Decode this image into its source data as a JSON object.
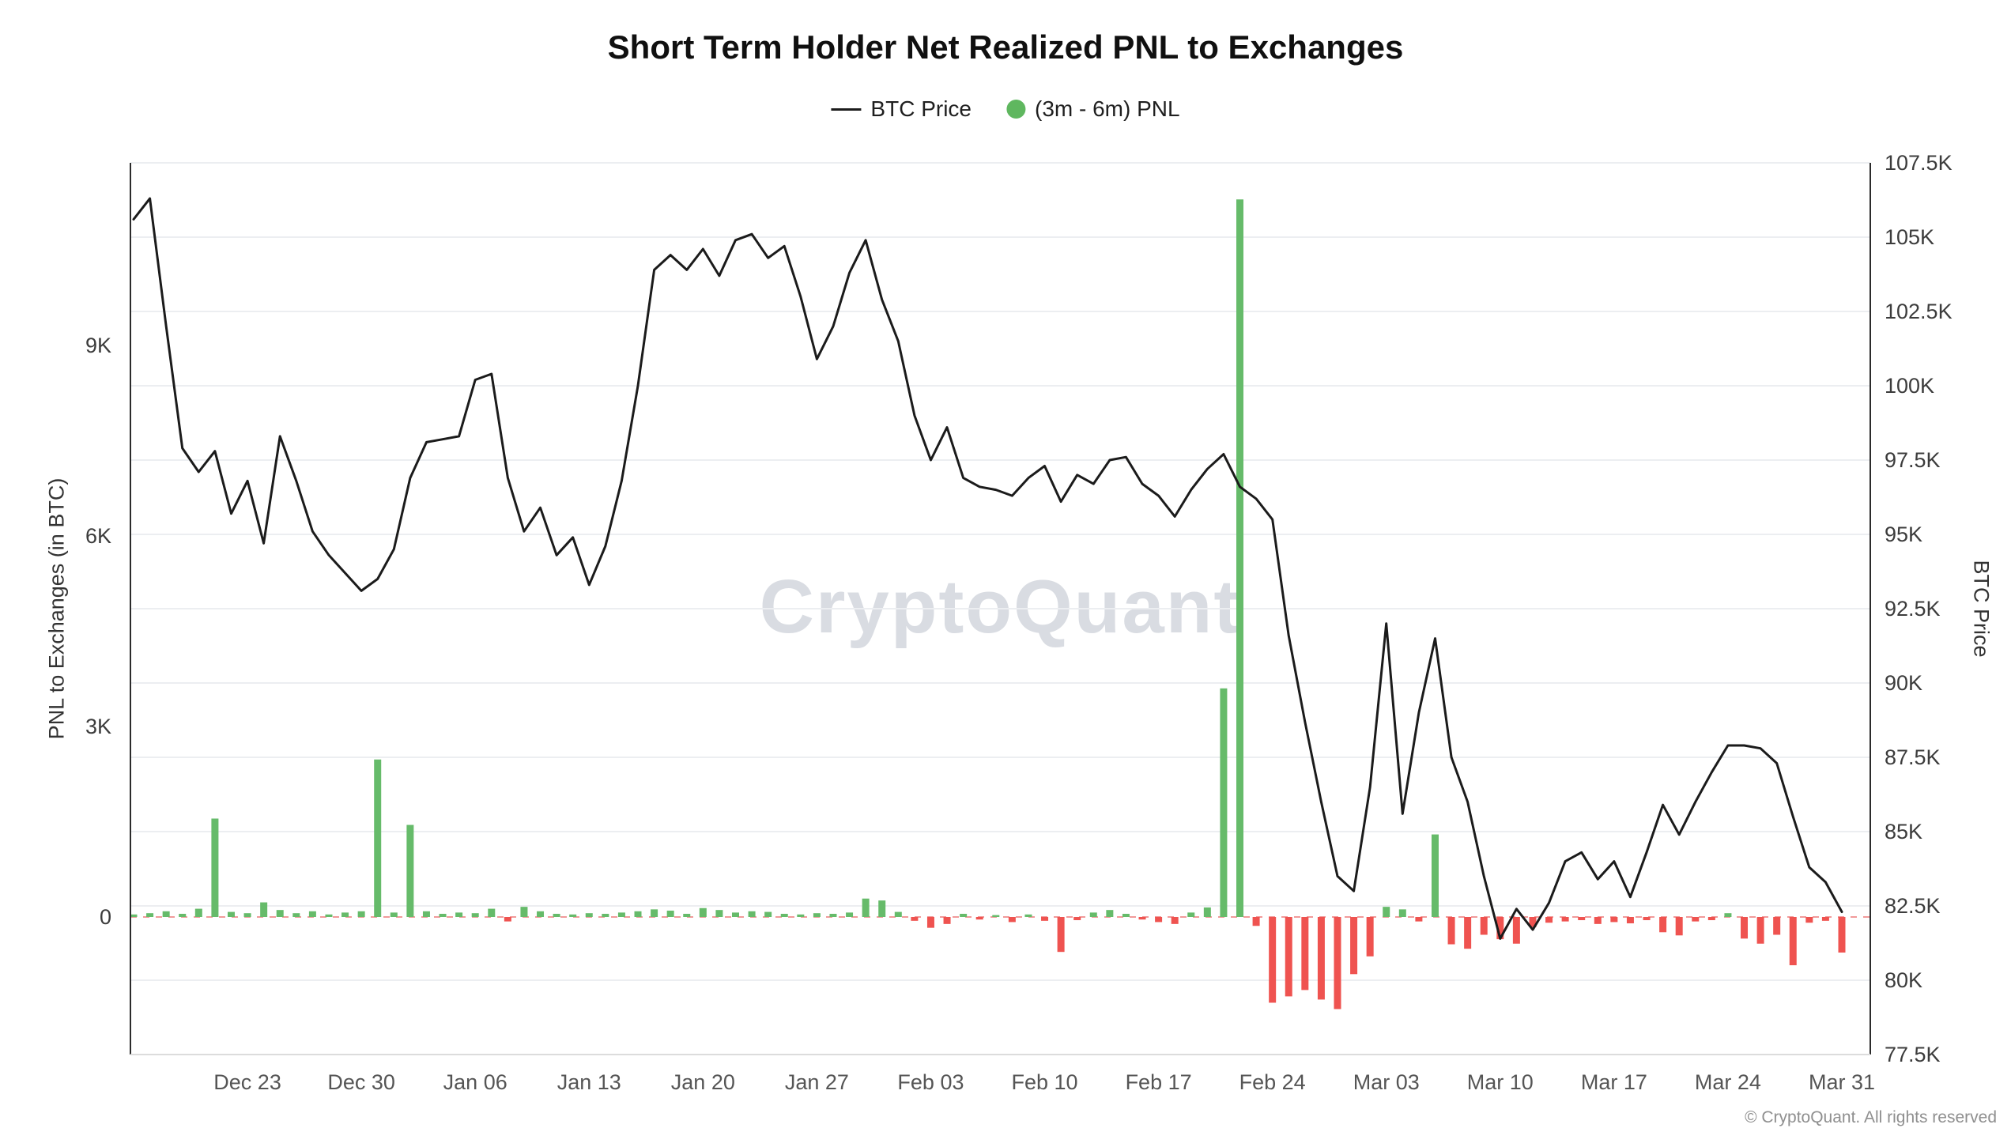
{
  "header": {
    "title": "Short Term Holder Net Realized PNL to Exchanges"
  },
  "legend": [
    {
      "label": "BTC Price",
      "marker": "line",
      "color": "#1b1b1b"
    },
    {
      "label": "(3m - 6m) PNL",
      "marker": "circle",
      "color": "#5fb75f"
    }
  ],
  "watermark": "CryptoQuant",
  "footer": "© CryptoQuant. All rights reserved",
  "chart_data": {
    "type": "line+bar",
    "title": "Short Term Holder Net Realized PNL to Exchanges",
    "left_axis": {
      "title": "PNL to Exchanges (in BTC)",
      "ticks": [
        0,
        3000,
        6000,
        9000
      ],
      "tick_labels": [
        "0",
        "3K",
        "6K",
        "9K"
      ],
      "range": [
        -2166,
        11876
      ]
    },
    "right_axis": {
      "title": "BTC Price",
      "min": 77500,
      "max": 107500,
      "step": 2500
    },
    "grid": {
      "horizontal": true,
      "vertical": false,
      "color": "#eceef1"
    },
    "zero_line": {
      "color": "#f19a9a",
      "style": "dashed"
    },
    "x_tick_labels": [
      "Dec 23",
      "Dec 30",
      "Jan 06",
      "Jan 13",
      "Jan 20",
      "Jan 27",
      "Feb 03",
      "Feb 10",
      "Feb 17",
      "Feb 24",
      "Mar 03",
      "Mar 10",
      "Mar 17",
      "Mar 24",
      "Mar 31"
    ],
    "dates": [
      "Dec 16",
      "Dec 17",
      "Dec 18",
      "Dec 19",
      "Dec 20",
      "Dec 21",
      "Dec 22",
      "Dec 23",
      "Dec 24",
      "Dec 25",
      "Dec 26",
      "Dec 27",
      "Dec 28",
      "Dec 29",
      "Dec 30",
      "Dec 31",
      "Jan 01",
      "Jan 02",
      "Jan 03",
      "Jan 04",
      "Jan 05",
      "Jan 06",
      "Jan 07",
      "Jan 08",
      "Jan 09",
      "Jan 10",
      "Jan 11",
      "Jan 12",
      "Jan 13",
      "Jan 14",
      "Jan 15",
      "Jan 16",
      "Jan 17",
      "Jan 18",
      "Jan 19",
      "Jan 20",
      "Jan 21",
      "Jan 22",
      "Jan 23",
      "Jan 24",
      "Jan 25",
      "Jan 26",
      "Jan 27",
      "Jan 28",
      "Jan 29",
      "Jan 30",
      "Jan 31",
      "Feb 01",
      "Feb 02",
      "Feb 03",
      "Feb 04",
      "Feb 05",
      "Feb 06",
      "Feb 07",
      "Feb 08",
      "Feb 09",
      "Feb 10",
      "Feb 11",
      "Feb 12",
      "Feb 13",
      "Feb 14",
      "Feb 15",
      "Feb 16",
      "Feb 17",
      "Feb 18",
      "Feb 19",
      "Feb 20",
      "Feb 21",
      "Feb 22",
      "Feb 23",
      "Feb 24",
      "Feb 25",
      "Feb 26",
      "Feb 27",
      "Feb 28",
      "Mar 01",
      "Mar 02",
      "Mar 03",
      "Mar 04",
      "Mar 05",
      "Mar 06",
      "Mar 07",
      "Mar 08",
      "Mar 09",
      "Mar 10",
      "Mar 11",
      "Mar 12",
      "Mar 13",
      "Mar 14",
      "Mar 15",
      "Mar 16",
      "Mar 17",
      "Mar 18",
      "Mar 19",
      "Mar 20",
      "Mar 21",
      "Mar 22",
      "Mar 23",
      "Mar 24",
      "Mar 25",
      "Mar 26",
      "Mar 27",
      "Mar 28",
      "Mar 29",
      "Mar 30",
      "Mar 31"
    ],
    "series": [
      {
        "name": "BTC Price",
        "type": "line",
        "axis": "right",
        "color": "#1b1b1b",
        "values": [
          105600,
          106300,
          102000,
          97900,
          97100,
          97800,
          95700,
          96800,
          94700,
          98300,
          96800,
          95100,
          94300,
          93700,
          93100,
          93500,
          94500,
          96900,
          98100,
          98200,
          98300,
          100200,
          100400,
          96900,
          95100,
          95900,
          94300,
          94900,
          93300,
          94600,
          96800,
          100000,
          103900,
          104400,
          103900,
          104600,
          103700,
          104900,
          105100,
          104300,
          104700,
          103000,
          100900,
          102000,
          103800,
          104900,
          102900,
          101500,
          99000,
          97500,
          98600,
          96900,
          96600,
          96500,
          96300,
          96900,
          97300,
          96100,
          97000,
          96700,
          97500,
          97600,
          96700,
          96300,
          95600,
          96500,
          97200,
          97700,
          96600,
          96200,
          95500,
          91600,
          88700,
          86000,
          83500,
          83000,
          86500,
          92000,
          85600,
          89000,
          91500,
          87500,
          86000,
          83500,
          81400,
          82400,
          81700,
          82600,
          84000,
          84300,
          83400,
          84000,
          82800,
          84300,
          85900,
          84900,
          86000,
          87000,
          87900,
          87900,
          87800,
          87300,
          85500,
          83800,
          83300,
          82300
        ]
      },
      {
        "name": "(3m - 6m) PNL",
        "type": "bar",
        "axis": "left",
        "color_positive": "#66bb6a",
        "color_negative": "#ef5350",
        "values": [
          40,
          60,
          90,
          50,
          130,
          1550,
          80,
          60,
          230,
          110,
          60,
          90,
          40,
          70,
          90,
          2480,
          70,
          1450,
          90,
          50,
          70,
          60,
          130,
          -70,
          160,
          90,
          50,
          40,
          60,
          50,
          70,
          90,
          120,
          100,
          50,
          140,
          110,
          70,
          90,
          80,
          50,
          40,
          60,
          50,
          70,
          290,
          260,
          80,
          -60,
          -170,
          -110,
          50,
          -40,
          30,
          -80,
          40,
          -60,
          -550,
          -50,
          70,
          110,
          50,
          -40,
          -80,
          -110,
          70,
          150,
          3600,
          11300,
          -140,
          -1350,
          -1250,
          -1150,
          -1300,
          -1450,
          -900,
          -620,
          160,
          120,
          -70,
          1300,
          -430,
          -500,
          -280,
          -350,
          -420,
          -160,
          -90,
          -70,
          -50,
          -110,
          -80,
          -100,
          -50,
          -240,
          -290,
          -70,
          -50,
          60,
          -340,
          -420,
          -280,
          -760,
          -90,
          -60,
          -560
        ]
      }
    ]
  }
}
